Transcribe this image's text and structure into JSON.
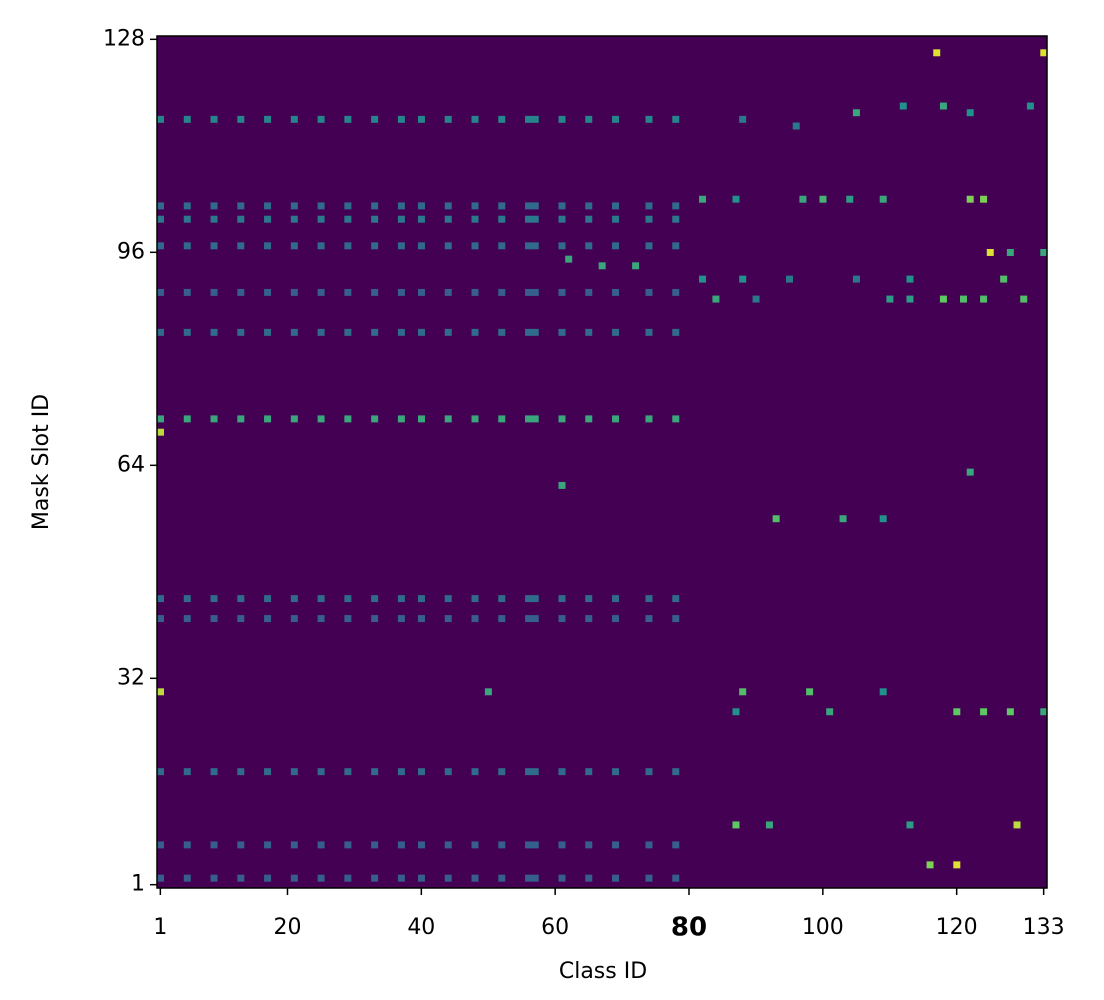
{
  "chart_data": {
    "type": "heatmap",
    "xlabel": "Class ID",
    "ylabel": "Mask Slot ID",
    "colormap": "viridis",
    "xlim": [
      0.5,
      133.5
    ],
    "ylim": [
      0.5,
      128.5
    ],
    "xticks": [
      1,
      20,
      40,
      60,
      {
        "value": 80,
        "label": "80",
        "weight": "bold"
      },
      100,
      120,
      133
    ],
    "yticks": [
      1,
      32,
      64,
      96,
      128
    ],
    "x": [
      1,
      5,
      9,
      13,
      17,
      21,
      25,
      29,
      33,
      37,
      40,
      44,
      48,
      52,
      56,
      57,
      61,
      65,
      69,
      74,
      78,
      1,
      5,
      9,
      13,
      17,
      21,
      25,
      29,
      33,
      37,
      40,
      44,
      48,
      52,
      56,
      57,
      61,
      65,
      69,
      74,
      78,
      1,
      5,
      9,
      13,
      17,
      21,
      25,
      29,
      33,
      37,
      40,
      44,
      48,
      52,
      56,
      57,
      61,
      65,
      69,
      74,
      78,
      1,
      5,
      9,
      13,
      17,
      21,
      25,
      29,
      33,
      37,
      40,
      44,
      48,
      52,
      56,
      57,
      61,
      65,
      69,
      74,
      78,
      1,
      5,
      9,
      13,
      17,
      21,
      25,
      29,
      33,
      37,
      40,
      44,
      48,
      52,
      56,
      57,
      61,
      65,
      69,
      74,
      78,
      1,
      5,
      9,
      13,
      17,
      21,
      25,
      29,
      33,
      37,
      40,
      44,
      48,
      52,
      56,
      57,
      61,
      65,
      69,
      74,
      78,
      1,
      5,
      9,
      13,
      17,
      21,
      25,
      29,
      33,
      37,
      40,
      44,
      48,
      52,
      56,
      57,
      61,
      65,
      69,
      74,
      78,
      1,
      5,
      9,
      13,
      17,
      21,
      25,
      29,
      33,
      37,
      40,
      44,
      48,
      52,
      56,
      57,
      61,
      65,
      69,
      74,
      78,
      1,
      5,
      9,
      13,
      17,
      21,
      25,
      29,
      33,
      37,
      40,
      44,
      48,
      52,
      56,
      57,
      61,
      65,
      69,
      74,
      78,
      1,
      5,
      9,
      13,
      17,
      21,
      25,
      29,
      33,
      37,
      40,
      44,
      48,
      52,
      56,
      57,
      61,
      65,
      69,
      74,
      78,
      1,
      5,
      9,
      13,
      17,
      21,
      25,
      29,
      33,
      37,
      40,
      44,
      48,
      52,
      56,
      57,
      61,
      65,
      69,
      74,
      78,
      1,
      5,
      9,
      13,
      17,
      21,
      25,
      29,
      33,
      37,
      40,
      44,
      48,
      52,
      56,
      57,
      61,
      65,
      69,
      74,
      78,
      117,
      133,
      88,
      96,
      105,
      112,
      118,
      122,
      131,
      82,
      87,
      97,
      100,
      104,
      109,
      122,
      124,
      125,
      128,
      133,
      62,
      67,
      72,
      82,
      88,
      95,
      105,
      113,
      127,
      84,
      90,
      110,
      113,
      118,
      121,
      124,
      130,
      93,
      103,
      109,
      50,
      88,
      98,
      109,
      87,
      101,
      120,
      124,
      128,
      133,
      87,
      92,
      113,
      129,
      116,
      120,
      61,
      122,
      1,
      1
    ],
    "y": [
      116,
      116,
      116,
      116,
      116,
      116,
      116,
      116,
      116,
      116,
      116,
      116,
      116,
      116,
      116,
      116,
      116,
      116,
      116,
      116,
      116,
      103,
      103,
      103,
      103,
      103,
      103,
      103,
      103,
      103,
      103,
      103,
      103,
      103,
      103,
      103,
      103,
      103,
      103,
      103,
      103,
      103,
      101,
      101,
      101,
      101,
      101,
      101,
      101,
      101,
      101,
      101,
      101,
      101,
      101,
      101,
      101,
      101,
      101,
      101,
      101,
      101,
      101,
      97,
      97,
      97,
      97,
      97,
      97,
      97,
      97,
      97,
      97,
      97,
      97,
      97,
      97,
      97,
      97,
      97,
      97,
      97,
      97,
      97,
      90,
      90,
      90,
      90,
      90,
      90,
      90,
      90,
      90,
      90,
      90,
      90,
      90,
      90,
      90,
      90,
      90,
      90,
      90,
      90,
      90,
      84,
      84,
      84,
      84,
      84,
      84,
      84,
      84,
      84,
      84,
      84,
      84,
      84,
      84,
      84,
      84,
      84,
      84,
      84,
      84,
      84,
      71,
      71,
      71,
      71,
      71,
      71,
      71,
      71,
      71,
      71,
      71,
      71,
      71,
      71,
      71,
      71,
      71,
      71,
      71,
      71,
      71,
      44,
      44,
      44,
      44,
      44,
      44,
      44,
      44,
      44,
      44,
      44,
      44,
      44,
      44,
      44,
      44,
      44,
      44,
      44,
      44,
      44,
      41,
      41,
      41,
      41,
      41,
      41,
      41,
      41,
      41,
      41,
      41,
      41,
      41,
      41,
      41,
      41,
      41,
      41,
      41,
      41,
      41,
      18,
      18,
      18,
      18,
      18,
      18,
      18,
      18,
      18,
      18,
      18,
      18,
      18,
      18,
      18,
      18,
      18,
      18,
      18,
      18,
      18,
      7,
      7,
      7,
      7,
      7,
      7,
      7,
      7,
      7,
      7,
      7,
      7,
      7,
      7,
      7,
      7,
      7,
      7,
      7,
      7,
      7,
      2,
      2,
      2,
      2,
      2,
      2,
      2,
      2,
      2,
      2,
      2,
      2,
      2,
      2,
      2,
      2,
      2,
      2,
      2,
      2,
      2,
      126,
      126,
      116,
      115,
      117,
      118,
      118,
      117,
      118,
      104,
      104,
      104,
      104,
      104,
      104,
      104,
      104,
      96,
      96,
      96,
      95,
      94,
      94,
      92,
      92,
      92,
      92,
      92,
      92,
      89,
      89,
      89,
      89,
      89,
      89,
      89,
      89,
      56,
      56,
      56,
      30,
      30,
      30,
      30,
      27,
      27,
      27,
      27,
      27,
      27,
      10,
      10,
      10,
      10,
      4,
      4,
      61,
      63,
      69,
      30
    ],
    "values": [
      0.45,
      0.45,
      0.45,
      0.45,
      0.45,
      0.45,
      0.45,
      0.45,
      0.45,
      0.45,
      0.45,
      0.45,
      0.45,
      0.45,
      0.45,
      0.45,
      0.45,
      0.45,
      0.45,
      0.45,
      0.45,
      0.35,
      0.35,
      0.35,
      0.35,
      0.35,
      0.35,
      0.35,
      0.35,
      0.35,
      0.35,
      0.35,
      0.35,
      0.35,
      0.35,
      0.35,
      0.35,
      0.35,
      0.35,
      0.35,
      0.35,
      0.35,
      0.4,
      0.4,
      0.4,
      0.4,
      0.4,
      0.4,
      0.4,
      0.4,
      0.4,
      0.4,
      0.4,
      0.4,
      0.4,
      0.4,
      0.4,
      0.4,
      0.4,
      0.4,
      0.4,
      0.4,
      0.4,
      0.35,
      0.35,
      0.35,
      0.35,
      0.35,
      0.35,
      0.35,
      0.35,
      0.35,
      0.35,
      0.35,
      0.35,
      0.35,
      0.35,
      0.35,
      0.35,
      0.35,
      0.35,
      0.35,
      0.35,
      0.35,
      0.3,
      0.3,
      0.3,
      0.3,
      0.3,
      0.3,
      0.3,
      0.3,
      0.3,
      0.3,
      0.3,
      0.3,
      0.3,
      0.3,
      0.3,
      0.3,
      0.3,
      0.3,
      0.3,
      0.3,
      0.3,
      0.35,
      0.35,
      0.35,
      0.35,
      0.35,
      0.35,
      0.35,
      0.35,
      0.35,
      0.35,
      0.35,
      0.35,
      0.35,
      0.35,
      0.35,
      0.35,
      0.35,
      0.35,
      0.35,
      0.35,
      0.35,
      0.6,
      0.6,
      0.6,
      0.6,
      0.6,
      0.6,
      0.6,
      0.6,
      0.6,
      0.6,
      0.6,
      0.6,
      0.6,
      0.6,
      0.6,
      0.6,
      0.6,
      0.6,
      0.6,
      0.6,
      0.6,
      0.35,
      0.35,
      0.35,
      0.35,
      0.35,
      0.35,
      0.35,
      0.35,
      0.35,
      0.35,
      0.35,
      0.35,
      0.35,
      0.35,
      0.35,
      0.35,
      0.35,
      0.35,
      0.35,
      0.35,
      0.35,
      0.3,
      0.3,
      0.3,
      0.3,
      0.3,
      0.3,
      0.3,
      0.3,
      0.3,
      0.3,
      0.3,
      0.3,
      0.3,
      0.3,
      0.3,
      0.3,
      0.3,
      0.3,
      0.3,
      0.3,
      0.3,
      0.35,
      0.35,
      0.35,
      0.35,
      0.35,
      0.35,
      0.35,
      0.35,
      0.35,
      0.35,
      0.35,
      0.35,
      0.35,
      0.35,
      0.35,
      0.35,
      0.35,
      0.35,
      0.35,
      0.35,
      0.35,
      0.3,
      0.3,
      0.3,
      0.3,
      0.3,
      0.3,
      0.3,
      0.3,
      0.3,
      0.3,
      0.3,
      0.3,
      0.3,
      0.3,
      0.3,
      0.3,
      0.3,
      0.3,
      0.3,
      0.3,
      0.3,
      0.3,
      0.3,
      0.3,
      0.3,
      0.3,
      0.3,
      0.3,
      0.3,
      0.3,
      0.3,
      0.3,
      0.3,
      0.3,
      0.3,
      0.3,
      0.3,
      0.3,
      0.3,
      0.3,
      0.3,
      0.3,
      0.95,
      0.95,
      0.4,
      0.4,
      0.6,
      0.5,
      0.6,
      0.5,
      0.5,
      0.6,
      0.5,
      0.6,
      0.65,
      0.55,
      0.6,
      0.8,
      0.8,
      0.95,
      0.6,
      0.6,
      0.6,
      0.6,
      0.6,
      0.5,
      0.5,
      0.4,
      0.4,
      0.5,
      0.7,
      0.6,
      0.4,
      0.55,
      0.55,
      0.75,
      0.7,
      0.7,
      0.7,
      0.7,
      0.6,
      0.5,
      0.6,
      0.7,
      0.7,
      0.5,
      0.5,
      0.6,
      0.75,
      0.75,
      0.75,
      0.6,
      0.75,
      0.6,
      0.55,
      0.9,
      0.8,
      0.95,
      0.6,
      0.6,
      0.9,
      0.9
    ]
  }
}
